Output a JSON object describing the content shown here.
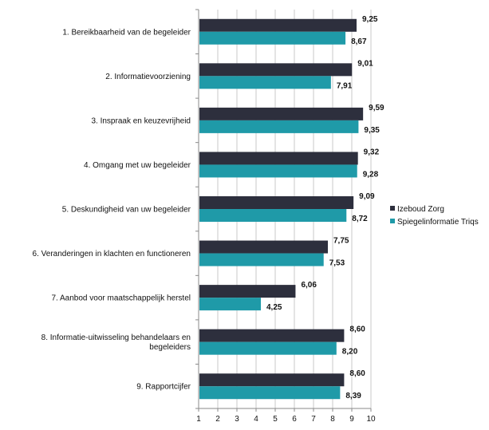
{
  "chart_data": {
    "type": "bar",
    "orientation": "horizontal",
    "title": "",
    "xlabel": "",
    "ylabel": "",
    "xlim": [
      1,
      10
    ],
    "ticks": [
      "1",
      "2",
      "3",
      "4",
      "5",
      "6",
      "7",
      "8",
      "9",
      "10"
    ],
    "grid": "vertical",
    "legend_position": "right",
    "categories": [
      "1. Bereikbaarheid van de begeleider",
      "2. Informatievoorziening",
      "3. Inspraak en keuzevrijheid",
      "4. Omgang met uw begeleider",
      "5. Deskundigheid van uw begeleider",
      "6. Veranderingen in klachten en functioneren",
      "7. Aanbod voor maatschappelijk herstel",
      "8. Informatie-uitwisseling behandelaars en begeleiders",
      "9. Rapportcijfer"
    ],
    "series": [
      {
        "name": "Izeboud Zorg",
        "color": "#2d2f3d",
        "values": [
          9.25,
          9.01,
          9.59,
          9.32,
          9.09,
          7.75,
          6.06,
          8.6,
          8.6
        ],
        "labels": [
          "9,25",
          "9,01",
          "9,59",
          "9,32",
          "9,09",
          "7,75",
          "6,06",
          "8,60",
          "8,60"
        ]
      },
      {
        "name": "Spiegelinformatie Triqs",
        "color": "#1f9aa8",
        "values": [
          8.67,
          7.91,
          9.35,
          9.28,
          8.72,
          7.53,
          4.25,
          8.2,
          8.39
        ],
        "labels": [
          "8,67",
          "7,91",
          "9,35",
          "9,28",
          "8,72",
          "7,53",
          "4,25",
          "8,20",
          "8,39"
        ]
      }
    ]
  }
}
